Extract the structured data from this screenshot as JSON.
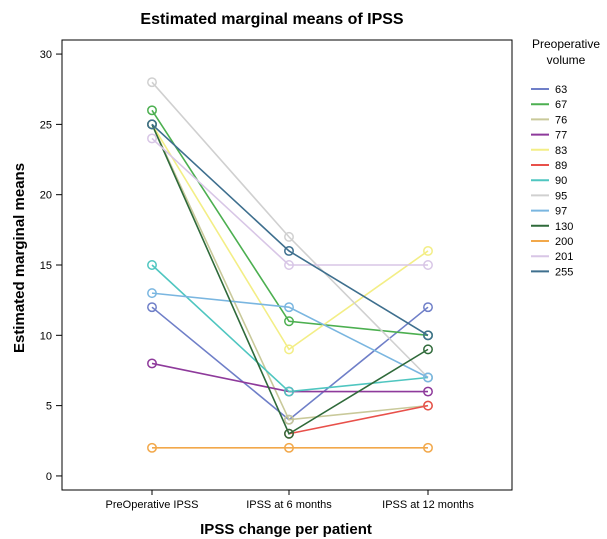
{
  "chart_data": {
    "type": "line",
    "title": "Estimated marginal means of IPSS",
    "xlabel": "IPSS change per patient",
    "ylabel": "Estimated marginal means",
    "categories": [
      "PreOperative IPSS",
      "IPSS at 6 months",
      "IPSS at 12 months"
    ],
    "ylim": [
      -1,
      31
    ],
    "yticks": [
      0,
      5,
      10,
      15,
      20,
      25,
      30
    ],
    "legend_title": "Preoperative volume",
    "legend_title_lines": [
      "Preoperative",
      "volume"
    ],
    "legend_position": "right",
    "grid": false,
    "series": [
      {
        "name": "63",
        "color": "#6f7fc8",
        "values": [
          12,
          4,
          12
        ]
      },
      {
        "name": "67",
        "color": "#4caf50",
        "values": [
          26,
          11,
          10
        ]
      },
      {
        "name": "76",
        "color": "#c9c99a",
        "values": [
          25,
          4,
          5
        ]
      },
      {
        "name": "77",
        "color": "#8e3a9b",
        "values": [
          8,
          6,
          6
        ]
      },
      {
        "name": "83",
        "color": "#f3ee86",
        "values": [
          25,
          9,
          16
        ]
      },
      {
        "name": "89",
        "color": "#e8504a",
        "values": [
          null,
          3,
          5
        ]
      },
      {
        "name": "90",
        "color": "#4fc6c0",
        "values": [
          15,
          6,
          7
        ]
      },
      {
        "name": "95",
        "color": "#d0d0d0",
        "values": [
          28,
          17,
          7
        ]
      },
      {
        "name": "97",
        "color": "#7ab6e0",
        "values": [
          13,
          12,
          7
        ]
      },
      {
        "name": "130",
        "color": "#2f6a3a",
        "values": [
          25,
          3,
          9
        ]
      },
      {
        "name": "200",
        "color": "#f2a84a",
        "values": [
          2,
          2,
          2
        ]
      },
      {
        "name": "201",
        "color": "#d8c6e6",
        "values": [
          24,
          15,
          15
        ]
      },
      {
        "name": "255",
        "color": "#3e6f8e",
        "values": [
          25,
          16,
          10
        ]
      }
    ]
  }
}
